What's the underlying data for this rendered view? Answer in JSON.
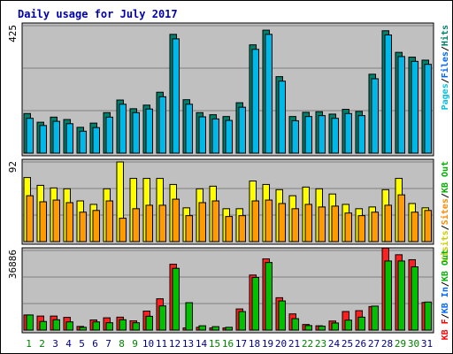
{
  "chart_data": {
    "type": "bar",
    "title": "Daily usage for July 2017",
    "days": [
      "1",
      "2",
      "3",
      "4",
      "5",
      "6",
      "7",
      "8",
      "9",
      "10",
      "11",
      "12",
      "13",
      "14",
      "15",
      "16",
      "17",
      "18",
      "19",
      "20",
      "21",
      "22",
      "23",
      "24",
      "25",
      "26",
      "27",
      "28",
      "29",
      "30",
      "31"
    ],
    "weekend_days": [
      "1",
      "2",
      "8",
      "9",
      "15",
      "16",
      "22",
      "23",
      "29",
      "30"
    ],
    "panels": [
      {
        "id": "top",
        "ymax": 425,
        "ymax_label": "425",
        "legend": [
          {
            "text": "Pages",
            "color": "#00c0e0"
          },
          {
            "text": "/",
            "color": "#000000"
          },
          {
            "text": "Files",
            "color": "#0066ff"
          },
          {
            "text": "/",
            "color": "#000000"
          },
          {
            "text": "Hits",
            "color": "#00806a"
          }
        ],
        "series": [
          {
            "name": "Hits",
            "color": "#00806a",
            "values": [
              132,
              103,
              120,
              112,
              86,
              100,
              135,
              177,
              148,
              160,
              203,
              396,
              178,
              135,
              128,
              122,
              168,
              361,
              410,
              255,
              122,
              136,
              138,
              130,
              146,
              139,
              263,
              408,
              336,
              320,
              310
            ]
          },
          {
            "name": "Files",
            "color": "#00b8e8",
            "values": [
              116,
              92,
              106,
              98,
              73,
              85,
              120,
              163,
              135,
              147,
              188,
              381,
              163,
              121,
              114,
              109,
              153,
              346,
              396,
              240,
              108,
              122,
              125,
              116,
              132,
              125,
              248,
              394,
              322,
              306,
              296
            ]
          }
        ]
      },
      {
        "id": "mid",
        "ymax": 92,
        "ymax_label": "92",
        "legend": [
          {
            "text": "Visits",
            "color": "#cccc00"
          },
          {
            "text": "/",
            "color": "#000000"
          },
          {
            "text": "Sites",
            "color": "#ff8800"
          },
          {
            "text": "/",
            "color": "#000000"
          },
          {
            "text": "KB Out",
            "color": "#00b000"
          }
        ],
        "series": [
          {
            "name": "Visits",
            "color": "#ffff00",
            "values": [
              74,
              65,
              62,
              61,
              47,
              43,
              61,
              92,
              73,
              73,
              73,
              66,
              39,
              61,
              64,
              38,
              38,
              70,
              66,
              60,
              53,
              63,
              61,
              55,
              43,
              38,
              40,
              60,
              73,
              44,
              39
            ]
          },
          {
            "name": "Sites",
            "color": "#ff9a00",
            "values": [
              53,
              46,
              48,
              45,
              34,
              36,
              47,
              27,
              38,
              42,
              42,
              49,
              30,
              45,
              47,
              29,
              30,
              47,
              48,
              44,
              38,
              43,
              40,
              41,
              33,
              30,
              34,
              42,
              54,
              34,
              36
            ]
          }
        ]
      },
      {
        "id": "bot",
        "ymax": 36886,
        "ymax_label": "36886",
        "legend": [
          {
            "text": "KB F",
            "color": "#ff0000"
          },
          {
            "text": "/",
            "color": "#000000"
          },
          {
            "text": "KB In",
            "color": "#0066ff"
          },
          {
            "text": "/",
            "color": "#000000"
          },
          {
            "text": "KB Out",
            "color": "#00b000"
          }
        ],
        "series": [
          {
            "name": "KB F",
            "color": "#ff2020",
            "values": [
              7000,
              6500,
              6500,
              5900,
              1700,
              4700,
              5700,
              6000,
              4300,
              8800,
              14500,
              30500,
              1000,
              1300,
              1000,
              1000,
              9800,
              25500,
              33000,
              15000,
              7500,
              2600,
              2000,
              4200,
              8600,
              9000,
              10900,
              38000,
              34900,
              32600,
              12800
            ]
          },
          {
            "name": "KB Out",
            "color": "#00c000",
            "values": [
              7000,
              4000,
              4800,
              3800,
              1300,
              3800,
              3400,
              4800,
              3400,
              6400,
              11200,
              28600,
              12700,
              2000,
              1600,
              1300,
              8600,
              24400,
              31300,
              13500,
              5300,
              2100,
              1800,
              3300,
              4600,
              6000,
              11100,
              32000,
              32000,
              29300,
              13000
            ]
          }
        ]
      }
    ]
  }
}
